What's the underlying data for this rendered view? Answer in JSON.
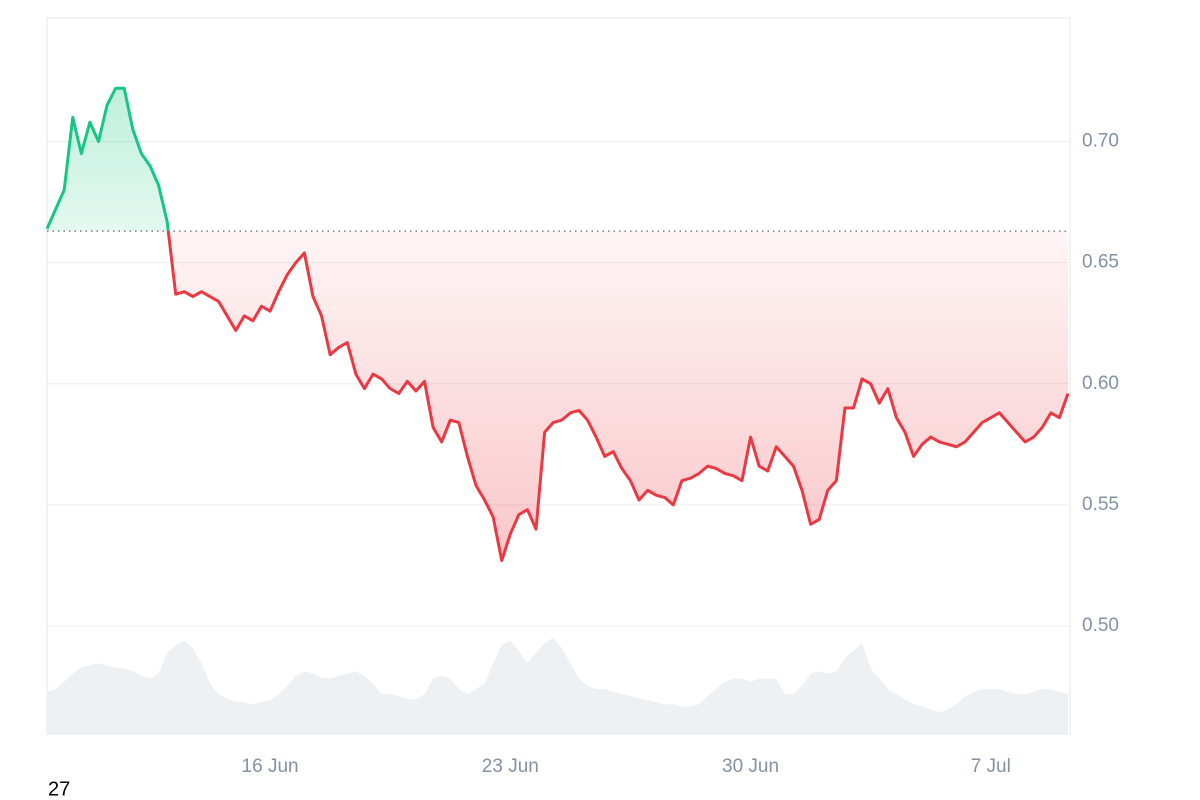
{
  "chart_data": {
    "type": "line",
    "categories": [
      null,
      null,
      null,
      null,
      null,
      null,
      null,
      null,
      null,
      null,
      null,
      null,
      null,
      null,
      null,
      null,
      null,
      null,
      null,
      null,
      null,
      null,
      null,
      null,
      null,
      null,
      "16 Jun",
      null,
      null,
      null,
      null,
      null,
      null,
      null,
      null,
      null,
      null,
      null,
      null,
      null,
      null,
      null,
      null,
      null,
      null,
      null,
      null,
      null,
      null,
      null,
      null,
      null,
      null,
      null,
      "23 Jun",
      null,
      null,
      null,
      null,
      null,
      null,
      null,
      null,
      null,
      null,
      null,
      null,
      null,
      null,
      null,
      null,
      null,
      null,
      null,
      null,
      null,
      null,
      null,
      null,
      null,
      null,
      null,
      "30 Jun",
      null,
      null,
      null,
      null,
      null,
      null,
      null,
      null,
      null,
      null,
      null,
      null,
      null,
      null,
      null,
      null,
      null,
      null,
      null,
      null,
      null,
      null,
      null,
      null,
      null,
      null,
      null,
      "7 Jul",
      null,
      null,
      null,
      null,
      null,
      null,
      null,
      null,
      null
    ],
    "series": [
      {
        "color": "#ea3943",
        "color_above": "#16c784",
        "values": [
          0.664,
          0.672,
          0.68,
          0.71,
          0.695,
          0.708,
          0.7,
          0.715,
          0.722,
          0.722,
          0.705,
          0.695,
          0.69,
          0.682,
          0.667,
          0.637,
          0.638,
          0.636,
          0.638,
          0.636,
          0.634,
          0.628,
          0.622,
          0.628,
          0.626,
          0.632,
          0.63,
          0.638,
          0.645,
          0.65,
          0.654,
          0.636,
          0.628,
          0.612,
          0.615,
          0.617,
          0.604,
          0.598,
          0.604,
          0.602,
          0.598,
          0.596,
          0.601,
          0.597,
          0.601,
          0.582,
          0.576,
          0.585,
          0.584,
          0.57,
          0.558,
          0.552,
          0.545,
          0.527,
          0.538,
          0.546,
          0.548,
          0.54,
          0.58,
          0.584,
          0.585,
          0.588,
          0.589,
          0.585,
          0.578,
          0.57,
          0.572,
          0.565,
          0.56,
          0.552,
          0.556,
          0.554,
          0.553,
          0.55,
          0.56,
          0.561,
          0.563,
          0.566,
          0.565,
          0.563,
          0.562,
          0.56,
          0.578,
          0.566,
          0.564,
          0.574,
          0.57,
          0.566,
          0.556,
          0.542,
          0.544,
          0.556,
          0.56,
          0.59,
          0.59,
          0.602,
          0.6,
          0.592,
          0.598,
          0.586,
          0.58,
          0.57,
          0.575,
          0.578,
          0.576,
          0.575,
          0.574,
          0.576,
          0.58,
          0.584,
          0.586,
          0.588,
          0.584,
          0.58,
          0.576,
          0.578,
          0.582,
          0.588,
          0.586,
          0.596
        ]
      },
      {
        "color": "#eef1f4",
        "axis": "y2",
        "values": [
          42,
          45,
          52,
          60,
          66,
          68,
          70,
          68,
          66,
          65,
          62,
          58,
          55,
          60,
          80,
          88,
          92,
          85,
          70,
          50,
          40,
          35,
          33,
          32,
          30,
          32,
          34,
          40,
          48,
          58,
          62,
          60,
          56,
          55,
          58,
          60,
          62,
          58,
          50,
          40,
          40,
          38,
          35,
          35,
          40,
          55,
          58,
          55,
          45,
          40,
          45,
          50,
          70,
          88,
          92,
          82,
          70,
          80,
          90,
          95,
          85,
          70,
          55,
          48,
          45,
          45,
          42,
          40,
          38,
          36,
          34,
          32,
          30,
          30,
          28,
          28,
          30,
          38,
          45,
          52,
          55,
          55,
          52,
          55,
          55,
          55,
          40,
          40,
          48,
          60,
          62,
          60,
          62,
          75,
          82,
          90,
          65,
          55,
          45,
          40,
          35,
          30,
          28,
          25,
          22,
          25,
          30,
          38,
          42,
          45,
          45,
          45,
          42,
          40,
          40,
          42,
          45,
          45,
          42,
          40
        ]
      }
    ],
    "baseline": 0.663,
    "ylim": [
      0.455,
      0.751
    ],
    "yticks": [
      {
        "value": 0.5,
        "label": "0.50"
      },
      {
        "value": 0.55,
        "label": "0.55"
      },
      {
        "value": 0.6,
        "label": "0.60"
      },
      {
        "value": 0.65,
        "label": "0.65"
      },
      {
        "value": 0.7,
        "label": "0.70"
      }
    ],
    "y2lim": [
      0,
      700
    ],
    "grid": true
  },
  "footer_text": "27"
}
